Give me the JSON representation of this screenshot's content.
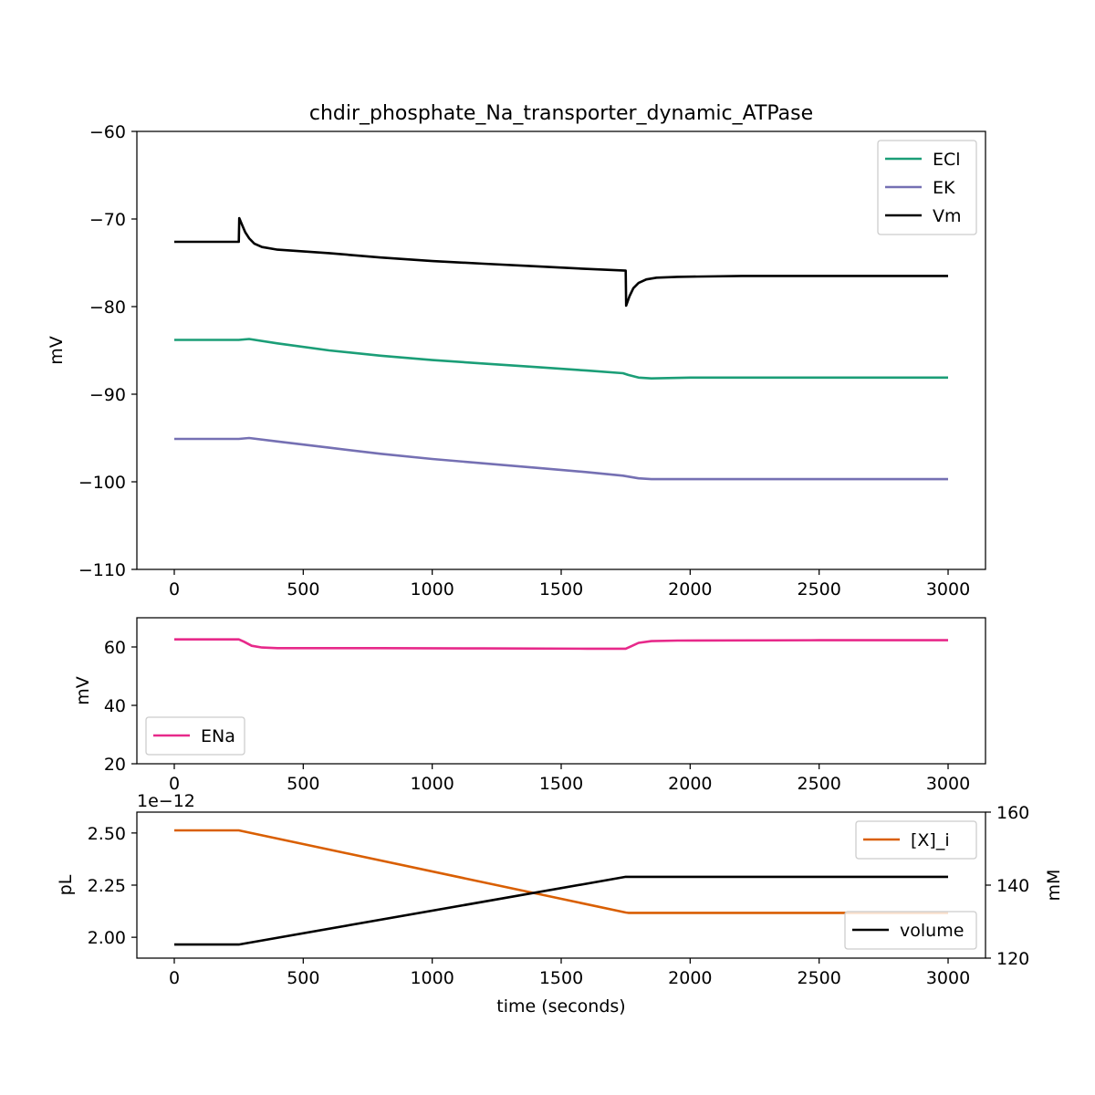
{
  "chart_data": [
    {
      "type": "line",
      "title": "chdir_phosphate_Na_transporter_dynamic_ATPase",
      "xlabel": "",
      "ylabel": "mV",
      "xlim": [
        -145,
        3145
      ],
      "ylim": [
        -110,
        -60
      ],
      "xticks": [
        0,
        500,
        1000,
        1500,
        2000,
        2500,
        3000
      ],
      "yticks": [
        -110,
        -100,
        -90,
        -80,
        -70,
        -60
      ],
      "yticklabels": [
        "−110",
        "−100",
        "−90",
        "−80",
        "−70",
        "−60"
      ],
      "legend_position": "upper-right",
      "series": [
        {
          "name": "ECl",
          "color": "#1b9e77",
          "points": [
            [
              0,
              -83.8
            ],
            [
              250,
              -83.8
            ],
            [
              290,
              -83.7
            ],
            [
              400,
              -84.2
            ],
            [
              600,
              -85.0
            ],
            [
              800,
              -85.6
            ],
            [
              1000,
              -86.1
            ],
            [
              1200,
              -86.5
            ],
            [
              1400,
              -86.9
            ],
            [
              1600,
              -87.3
            ],
            [
              1740,
              -87.6
            ],
            [
              1760,
              -87.8
            ],
            [
              1800,
              -88.1
            ],
            [
              1850,
              -88.2
            ],
            [
              2000,
              -88.1
            ],
            [
              2500,
              -88.1
            ],
            [
              3000,
              -88.1
            ]
          ]
        },
        {
          "name": "EK",
          "color": "#7570b3",
          "points": [
            [
              0,
              -95.1
            ],
            [
              250,
              -95.1
            ],
            [
              290,
              -95.0
            ],
            [
              400,
              -95.4
            ],
            [
              600,
              -96.1
            ],
            [
              800,
              -96.8
            ],
            [
              1000,
              -97.4
            ],
            [
              1200,
              -97.9
            ],
            [
              1400,
              -98.4
            ],
            [
              1600,
              -98.9
            ],
            [
              1740,
              -99.3
            ],
            [
              1800,
              -99.6
            ],
            [
              1850,
              -99.7
            ],
            [
              2000,
              -99.7
            ],
            [
              3000,
              -99.7
            ]
          ]
        },
        {
          "name": "Vm",
          "color": "#000000",
          "points": [
            [
              0,
              -72.6
            ],
            [
              250,
              -72.6
            ],
            [
              252,
              -69.9
            ],
            [
              262,
              -70.6
            ],
            [
              275,
              -71.5
            ],
            [
              290,
              -72.2
            ],
            [
              310,
              -72.8
            ],
            [
              340,
              -73.2
            ],
            [
              400,
              -73.5
            ],
            [
              600,
              -73.9
            ],
            [
              800,
              -74.4
            ],
            [
              1000,
              -74.8
            ],
            [
              1200,
              -75.1
            ],
            [
              1400,
              -75.4
            ],
            [
              1600,
              -75.7
            ],
            [
              1750,
              -75.9
            ],
            [
              1752,
              -79.9
            ],
            [
              1765,
              -78.8
            ],
            [
              1780,
              -77.9
            ],
            [
              1800,
              -77.3
            ],
            [
              1830,
              -76.9
            ],
            [
              1870,
              -76.7
            ],
            [
              1950,
              -76.6
            ],
            [
              2200,
              -76.5
            ],
            [
              3000,
              -76.5
            ]
          ]
        }
      ]
    },
    {
      "type": "line",
      "title": "",
      "xlabel": "",
      "ylabel": "mV",
      "xlim": [
        -145,
        3145
      ],
      "ylim": [
        20,
        70
      ],
      "xticks": [
        0,
        500,
        1000,
        1500,
        2000,
        2500,
        3000
      ],
      "yticks": [
        20,
        40,
        60
      ],
      "yticklabels": [
        "20",
        "40",
        "60"
      ],
      "legend_position": "lower-left",
      "series": [
        {
          "name": "ENa",
          "color": "#e7298a",
          "points": [
            [
              0,
              62.6
            ],
            [
              250,
              62.6
            ],
            [
              270,
              61.8
            ],
            [
              300,
              60.4
            ],
            [
              340,
              59.8
            ],
            [
              400,
              59.6
            ],
            [
              800,
              59.6
            ],
            [
              1200,
              59.5
            ],
            [
              1600,
              59.4
            ],
            [
              1750,
              59.4
            ],
            [
              1770,
              60.2
            ],
            [
              1800,
              61.4
            ],
            [
              1850,
              62.0
            ],
            [
              1950,
              62.2
            ],
            [
              2500,
              62.3
            ],
            [
              3000,
              62.3
            ]
          ]
        }
      ]
    },
    {
      "type": "line",
      "title": "",
      "xlabel": "time (seconds)",
      "ylabel": "pL",
      "y2label": "mM",
      "offset_text": "1e−12",
      "xlim": [
        -145,
        3145
      ],
      "ylim": [
        1.9,
        2.6
      ],
      "y2lim": [
        120,
        160
      ],
      "xticks": [
        0,
        500,
        1000,
        1500,
        2000,
        2500,
        3000
      ],
      "yticks": [
        2.0,
        2.25,
        2.5
      ],
      "yticklabels": [
        "2.00",
        "2.25",
        "2.50"
      ],
      "y2ticks": [
        120,
        140,
        160
      ],
      "y2ticklabels": [
        "120",
        "140",
        "160"
      ],
      "series": [
        {
          "name": "[X]_i",
          "color": "#d95f02",
          "axis": "right",
          "legend_position": "upper-right",
          "points": [
            [
              0,
              155.0
            ],
            [
              250,
              155.0
            ],
            [
              1750,
              132.5
            ],
            [
              1760,
              132.4
            ],
            [
              3000,
              132.4
            ]
          ]
        },
        {
          "name": "volume",
          "color": "#000000",
          "axis": "left",
          "legend_position": "lower-right",
          "points": [
            [
              0,
              1.965
            ],
            [
              250,
              1.965
            ],
            [
              1750,
              2.29
            ],
            [
              1760,
              2.29
            ],
            [
              3000,
              2.29
            ]
          ]
        }
      ]
    }
  ]
}
